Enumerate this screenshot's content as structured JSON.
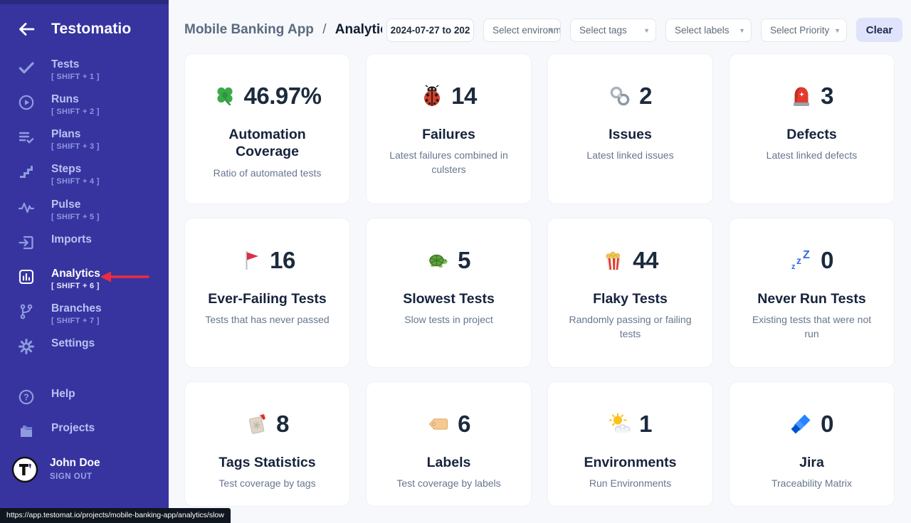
{
  "colors": {
    "sidebar_bg": "#3734a0",
    "sidebar_top_strip": "#2b2a80",
    "active_text": "#ffffff",
    "arrow_red": "#ee2b3e",
    "clear_button_bg": "#dfe3fb",
    "main_bg": "#f7f8fb",
    "card_bg": "#ffffff",
    "stat_text": "#1c2a3d",
    "jira_blue": "#2684ff"
  },
  "sidebar": {
    "logo": "Testomatio",
    "back_icon": "arrow-left-icon",
    "items": [
      {
        "label": "Tests",
        "shortcut": "[ SHIFT + 1 ]",
        "icon": "check-icon"
      },
      {
        "label": "Runs",
        "shortcut": "[ SHIFT + 2 ]",
        "icon": "play-circle-icon"
      },
      {
        "label": "Plans",
        "shortcut": "[ SHIFT + 3 ]",
        "icon": "list-check-icon"
      },
      {
        "label": "Steps",
        "shortcut": "[ SHIFT + 4 ]",
        "icon": "steps-icon"
      },
      {
        "label": "Pulse",
        "shortcut": "[ SHIFT + 5 ]",
        "icon": "pulse-icon"
      },
      {
        "label": "Imports",
        "shortcut": "",
        "icon": "import-icon"
      },
      {
        "label": "Analytics",
        "shortcut": "[ SHIFT + 6 ]",
        "icon": "bar-chart-icon",
        "active": true,
        "pointer": "red-arrow-icon"
      },
      {
        "label": "Branches",
        "shortcut": "[ SHIFT + 7 ]",
        "icon": "branch-icon"
      },
      {
        "label": "Settings",
        "shortcut": "",
        "icon": "gear-icon"
      }
    ],
    "footer_items": [
      {
        "label": "Help",
        "icon": "help-icon"
      },
      {
        "label": "Projects",
        "icon": "folder-icon"
      }
    ],
    "user": {
      "name": "John Doe",
      "signout": "SIGN OUT",
      "avatar_icon": "testomatio-avatar-icon"
    }
  },
  "header": {
    "breadcrumb": {
      "project": "Mobile Banking App",
      "separator": "/",
      "page": "Analytics"
    },
    "date_range": "2024-07-27 to 202",
    "filters": [
      {
        "placeholder": "Select environments",
        "width": "w1"
      },
      {
        "placeholder": "Select tags",
        "width": "w2"
      },
      {
        "placeholder": "Select labels",
        "width": "w2"
      },
      {
        "placeholder": "Select Priority",
        "width": "w2"
      }
    ],
    "caret": "▼",
    "clear_label": "Clear"
  },
  "cards": [
    {
      "icon": "clover-icon",
      "value": "46.97%",
      "title": "Automation Coverage",
      "subtitle": "Ratio of automated tests"
    },
    {
      "icon": "ladybug-icon",
      "value": "14",
      "title": "Failures",
      "subtitle": "Latest failures combined in culsters"
    },
    {
      "icon": "link-icon",
      "value": "2",
      "title": "Issues",
      "subtitle": "Latest linked issues"
    },
    {
      "icon": "siren-icon",
      "value": "3",
      "title": "Defects",
      "subtitle": "Latest linked defects"
    },
    {
      "icon": "flag-icon",
      "value": "16",
      "title": "Ever-Failing Tests",
      "subtitle": "Tests that has never passed"
    },
    {
      "icon": "turtle-icon",
      "value": "5",
      "title": "Slowest Tests",
      "subtitle": "Slow tests in project"
    },
    {
      "icon": "popcorn-icon",
      "value": "44",
      "title": "Flaky Tests",
      "subtitle": "Randomly passing or failing tests"
    },
    {
      "icon": "zzz-icon",
      "value": "0",
      "title": "Never Run Tests",
      "subtitle": "Existing tests that were not run"
    },
    {
      "icon": "bookmark-icon",
      "value": "8",
      "title": "Tags Statistics",
      "subtitle": "Test coverage by tags"
    },
    {
      "icon": "label-icon",
      "value": "6",
      "title": "Labels",
      "subtitle": "Test coverage by labels"
    },
    {
      "icon": "sun-cloud-icon",
      "value": "1",
      "title": "Environments",
      "subtitle": "Run Environments"
    },
    {
      "icon": "jira-icon",
      "value": "0",
      "title": "Jira",
      "subtitle": "Traceability Matrix"
    }
  ],
  "statusbar": {
    "url": "https://app.testomat.io/projects/mobile-banking-app/analytics/slow"
  }
}
